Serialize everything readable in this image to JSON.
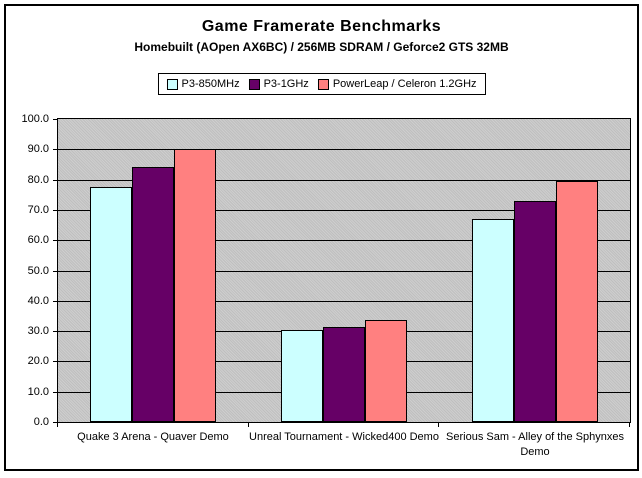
{
  "chart_data": {
    "type": "bar",
    "title": "Game Framerate Benchmarks",
    "subtitle": "Homebuilt (AOpen AX6BC) / 256MB SDRAM / Geforce2 GTS 32MB",
    "categories": [
      "Quake 3 Arena - Quaver Demo",
      "Unreal Tournament - Wicked400 Demo",
      "Serious Sam - Alley of the Sphynxes Demo"
    ],
    "series": [
      {
        "name": "P3-850MHz",
        "color": "#CCFFFF",
        "values": [
          77.5,
          30.5,
          67.0
        ]
      },
      {
        "name": "P3-1GHz",
        "color": "#660066",
        "values": [
          84.3,
          31.5,
          73.0
        ]
      },
      {
        "name": "PowerLeap / Celeron 1.2GHz",
        "color": "#FF8080",
        "values": [
          90.0,
          33.5,
          79.5
        ]
      }
    ],
    "ylabel": "",
    "xlabel": "",
    "ylim": [
      0,
      100
    ],
    "ytick_step": 10,
    "ytick_decimals": 1,
    "grid": true,
    "legend_position": "top-center",
    "plot_bg": "#C7C7C7",
    "gridline_color": "#000000",
    "bar_border_color": "#000000"
  }
}
